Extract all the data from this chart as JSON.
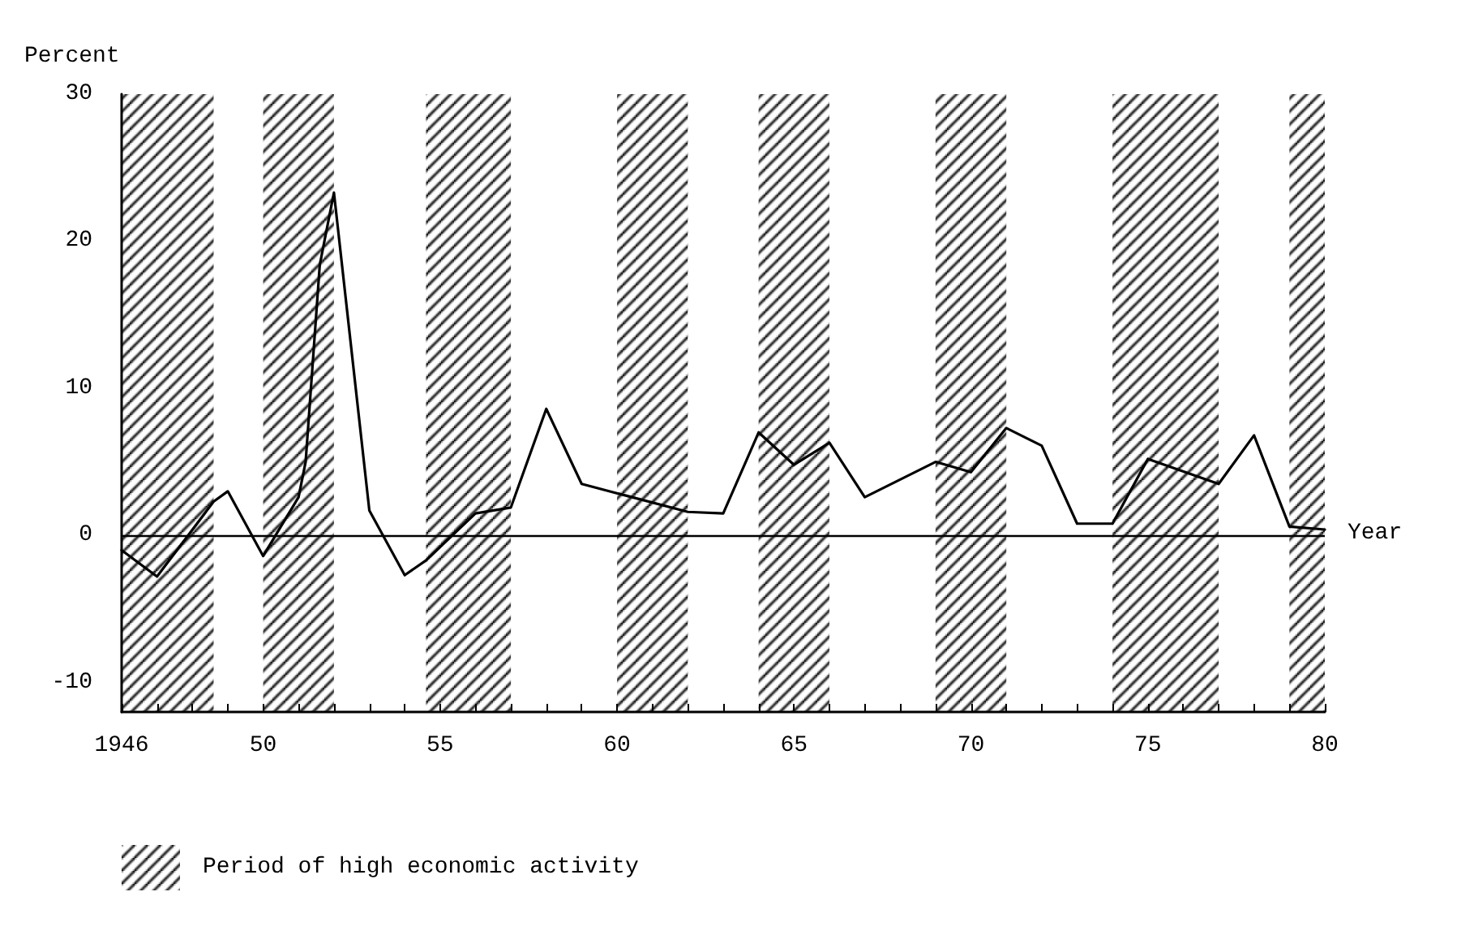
{
  "chart_data": {
    "type": "line",
    "ylabel": "Percent",
    "xlabel": "Year",
    "x": [
      1946,
      1947,
      1948.6,
      1949,
      1950,
      1951,
      1951.2,
      1951.6,
      1952,
      1953,
      1954,
      1954.6,
      1956,
      1957,
      1958,
      1959,
      1962,
      1963,
      1964,
      1965,
      1966,
      1967,
      1969,
      1970,
      1971,
      1972,
      1973,
      1974,
      1975,
      1977,
      1978,
      1979,
      1980
    ],
    "series": [
      {
        "color": "#000000",
        "values": [
          -1.0,
          -2.8,
          2.3,
          3.0,
          -1.4,
          2.6,
          5.0,
          18.4,
          23.3,
          1.7,
          -2.7,
          -1.7,
          1.5,
          1.9,
          8.6,
          3.5,
          1.6,
          1.5,
          7.0,
          4.8,
          6.3,
          2.6,
          5.0,
          4.3,
          7.3,
          6.1,
          0.8,
          0.8,
          5.2,
          3.5,
          6.8,
          0.6,
          0.4
        ]
      }
    ],
    "xlim": [
      1946,
      1980
    ],
    "xticks": [
      {
        "value": 1946,
        "label": "1946"
      },
      {
        "value": 1947,
        "label": null
      },
      {
        "value": 1948,
        "label": null
      },
      {
        "value": 1949,
        "label": null
      },
      {
        "value": 1950,
        "label": "50"
      },
      {
        "value": 1951,
        "label": null
      },
      {
        "value": 1952,
        "label": null
      },
      {
        "value": 1953,
        "label": null
      },
      {
        "value": 1954,
        "label": null
      },
      {
        "value": 1955,
        "label": "55"
      },
      {
        "value": 1956,
        "label": null
      },
      {
        "value": 1957,
        "label": null
      },
      {
        "value": 1958,
        "label": null
      },
      {
        "value": 1959,
        "label": null
      },
      {
        "value": 1960,
        "label": "60"
      },
      {
        "value": 1961,
        "label": null
      },
      {
        "value": 1962,
        "label": null
      },
      {
        "value": 1963,
        "label": null
      },
      {
        "value": 1964,
        "label": null
      },
      {
        "value": 1965,
        "label": "65"
      },
      {
        "value": 1966,
        "label": null
      },
      {
        "value": 1967,
        "label": null
      },
      {
        "value": 1968,
        "label": null
      },
      {
        "value": 1969,
        "label": null
      },
      {
        "value": 1970,
        "label": "70"
      },
      {
        "value": 1971,
        "label": null
      },
      {
        "value": 1972,
        "label": null
      },
      {
        "value": 1973,
        "label": null
      },
      {
        "value": 1974,
        "label": null
      },
      {
        "value": 1975,
        "label": "75"
      },
      {
        "value": 1976,
        "label": null
      },
      {
        "value": 1977,
        "label": null
      },
      {
        "value": 1978,
        "label": null
      },
      {
        "value": 1979,
        "label": null
      },
      {
        "value": 1980,
        "label": "80"
      }
    ],
    "ylim": [
      -12,
      30
    ],
    "yticks": [
      -10,
      0,
      10,
      20,
      30
    ],
    "ref_lines": [
      {
        "axis": "y",
        "value": 0,
        "color": "#000000"
      }
    ],
    "bands": [
      {
        "axis": "x",
        "from": 1946,
        "to": 1948.6,
        "color": "#000000",
        "label": "Period of high economic activity"
      },
      {
        "axis": "x",
        "from": 1950,
        "to": 1952,
        "color": "#000000"
      },
      {
        "axis": "x",
        "from": 1954.6,
        "to": 1957,
        "color": "#000000"
      },
      {
        "axis": "x",
        "from": 1960,
        "to": 1962,
        "color": "#000000"
      },
      {
        "axis": "x",
        "from": 1964,
        "to": 1966,
        "color": "#000000"
      },
      {
        "axis": "x",
        "from": 1969,
        "to": 1971,
        "color": "#000000"
      },
      {
        "axis": "x",
        "from": 1974,
        "to": 1977,
        "color": "#000000"
      },
      {
        "axis": "x",
        "from": 1979,
        "to": 1980,
        "color": "#000000"
      }
    ],
    "legend": "bottom left",
    "grid": false,
    "marker": "none",
    "line_style": "solid"
  }
}
